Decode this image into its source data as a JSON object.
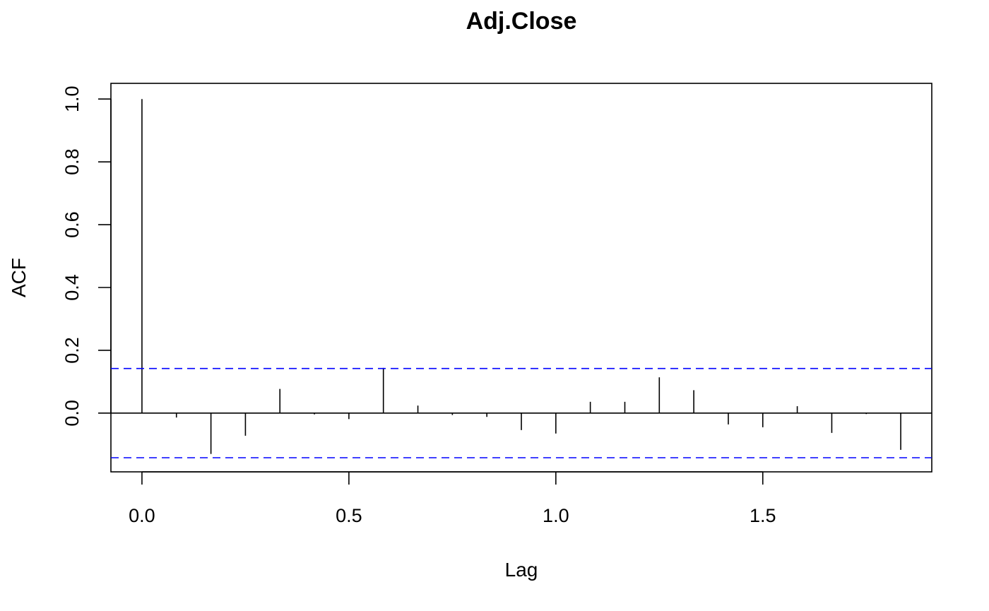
{
  "chart_data": {
    "type": "bar",
    "title": "Adj.Close",
    "xlabel": "Lag",
    "ylabel": "ACF",
    "xlim": [
      -0.075,
      1.9083
    ],
    "ylim": [
      -0.187,
      1.05
    ],
    "x_ticks": [
      {
        "value": 0.0,
        "label": "0.0"
      },
      {
        "value": 0.5,
        "label": "0.5"
      },
      {
        "value": 1.0,
        "label": "1.0"
      },
      {
        "value": 1.5,
        "label": "1.5"
      }
    ],
    "y_ticks": [
      {
        "value": 0.0,
        "label": "0.0"
      },
      {
        "value": 0.2,
        "label": "0.2"
      },
      {
        "value": 0.4,
        "label": "0.4"
      },
      {
        "value": 0.6,
        "label": "0.6"
      },
      {
        "value": 0.8,
        "label": "0.8"
      },
      {
        "value": 1.0,
        "label": "1.0"
      }
    ],
    "x": [
      0.0,
      0.0833,
      0.1667,
      0.25,
      0.3333,
      0.4167,
      0.5,
      0.5833,
      0.6667,
      0.75,
      0.8333,
      0.9167,
      1.0,
      1.0833,
      1.1667,
      1.25,
      1.3333,
      1.4167,
      1.5,
      1.5833,
      1.6667,
      1.75,
      1.8333
    ],
    "values": [
      1.0,
      -0.014,
      -0.13,
      -0.072,
      0.077,
      -0.004,
      -0.019,
      0.144,
      0.024,
      -0.006,
      -0.012,
      -0.054,
      -0.065,
      0.036,
      0.036,
      0.114,
      0.073,
      -0.036,
      -0.045,
      0.022,
      -0.063,
      -0.003,
      -0.117
    ],
    "confidence_bounds": [
      0.142,
      -0.142
    ],
    "colors": {
      "bars": "#000000",
      "confidence_line": "#0000ff",
      "zero_line": "#000000",
      "frame": "#000000"
    },
    "grid": false,
    "legend": "none"
  }
}
